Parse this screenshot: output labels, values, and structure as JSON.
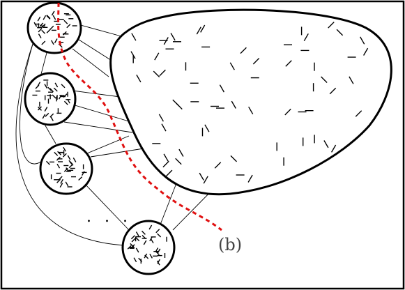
{
  "diagram": {
    "cut_label": "(b)",
    "ellipsis": ". . .",
    "colors": {
      "outline": "#000000",
      "cut": "#e01010",
      "label": "#444444"
    }
  }
}
